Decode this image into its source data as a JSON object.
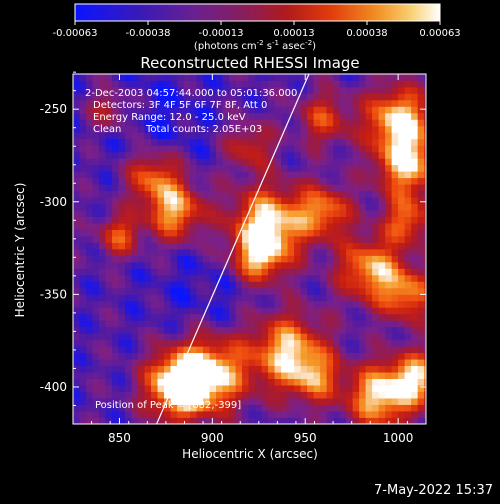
{
  "chart_data": {
    "type": "heatmap",
    "title": "Reconstructed RHESSI Image",
    "xlabel": "Heliocentric X (arcsec)",
    "ylabel": "Heliocentric Y (arcsec)",
    "xlim": [
      825,
      1015
    ],
    "ylim": [
      -420,
      -231
    ],
    "xticks": [
      850,
      900,
      950,
      1000
    ],
    "yticks": [
      -250,
      -300,
      -350,
      -400
    ],
    "colorbar": {
      "ticks": [
        "-0.00063",
        "-0.00038",
        "-0.00013",
        "0.00013",
        "0.00038",
        "0.00063"
      ],
      "unit_parts": [
        "(photons cm",
        "-2",
        " s",
        "-1",
        " asec",
        "-2",
        ")"
      ],
      "range": [
        -0.00063,
        0.00063
      ],
      "colors": [
        "#0a14ff",
        "#4a1aa8",
        "#7a208a",
        "#a01a3a",
        "#c81e10",
        "#f05010",
        "#f59a28",
        "#ffffff"
      ]
    },
    "annotations": {
      "time": "2-Dec-2003 04:57:44.000 to 05:01:36.000",
      "detectors": "Detectors: 3F 4F 5F 6F 7F 8F, Att 0",
      "energy": "Energy Range: 12.0 - 25.0 keV",
      "clean_label": "Clean",
      "counts": "Total counts: 2.05E+03",
      "peak": "Position of Peak = [882,-399]"
    },
    "peak": {
      "x": 882,
      "y": -399
    },
    "limb_line": [
      [
        870,
        -420
      ],
      [
        952,
        -231
      ]
    ],
    "date_stamp": "7-May-2022 15:37"
  }
}
